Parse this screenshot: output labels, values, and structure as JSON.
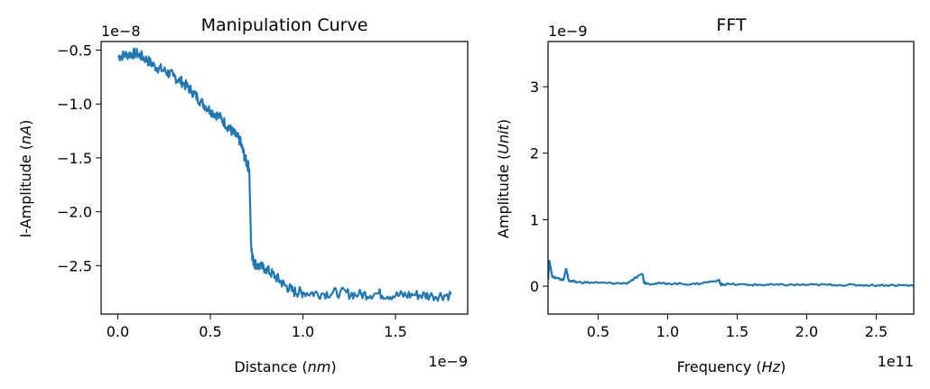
{
  "chart_data": [
    {
      "type": "line",
      "title": "Manipulation Curve",
      "xlabel": "Distance (nm)",
      "ylabel": "I-Amplitude (nA)",
      "x_offset_text": "1e−9",
      "y_offset_text": "1e−8",
      "xlim": [
        -9e-11,
        1.89e-09
      ],
      "ylim": [
        -2.95e-08,
        -4.2e-09
      ],
      "x_ticks": [
        0.0,
        5e-10,
        1e-09,
        1.5e-09
      ],
      "x_tick_labels": [
        "0.0",
        "0.5",
        "1.0",
        "1.5"
      ],
      "y_ticks": [
        -5e-09,
        -1e-08,
        -1.5e-08,
        -2e-08,
        -2.5e-08
      ],
      "y_tick_labels": [
        "−0.5",
        "−1.0",
        "−1.5",
        "−2.0",
        "−2.5"
      ],
      "grid": false,
      "series": [
        {
          "color": "#1f77b4",
          "x": [
            0.0,
            5e-11,
            1e-10,
            1.5e-10,
            2e-10,
            2.5e-10,
            3e-10,
            3.5e-10,
            4e-10,
            4.5e-10,
            5e-10,
            5.5e-10,
            6e-10,
            6.3e-10,
            6.6e-10,
            6.9e-10,
            7.1e-10,
            7.2e-10,
            7.3e-10,
            7.5e-10,
            8e-10,
            8.5e-10,
            9e-10,
            9.5e-10,
            1e-09,
            1.1e-09,
            1.2e-09,
            1.3e-09,
            1.4e-09,
            1.5e-09,
            1.6e-09,
            1.7e-09,
            1.8e-09
          ],
          "y": [
            -5.6e-09,
            -5.4e-09,
            -5.3e-09,
            -5.8e-09,
            -6.5e-09,
            -6.9e-09,
            -7.4e-09,
            -8e-09,
            -8.8e-09,
            -9.8e-09,
            -1.06e-08,
            -1.12e-08,
            -1.22e-08,
            -1.28e-08,
            -1.34e-08,
            -1.52e-08,
            -1.6e-08,
            -2.3e-08,
            -2.45e-08,
            -2.5e-08,
            -2.53e-08,
            -2.6e-08,
            -2.68e-08,
            -2.74e-08,
            -2.75e-08,
            -2.76e-08,
            -2.75e-08,
            -2.77e-08,
            -2.76e-08,
            -2.78e-08,
            -2.77e-08,
            -2.78e-08,
            -2.77e-08
          ]
        }
      ]
    },
    {
      "type": "line",
      "title": "FFT",
      "xlabel": "Frequency (Hz)",
      "ylabel": "Amplitude (Unit)",
      "x_offset_text": "1e11",
      "y_offset_text": "1e−9",
      "xlim": [
        14000000000.0,
        277000000000.0
      ],
      "ylim": [
        -4.2e-10,
        3.68e-09
      ],
      "x_ticks": [
        50000000000.0,
        100000000000.0,
        150000000000.0,
        200000000000.0,
        250000000000.0
      ],
      "x_tick_labels": [
        "0.5",
        "1.0",
        "1.5",
        "2.0",
        "2.5"
      ],
      "y_ticks": [
        0,
        1e-09,
        2e-09,
        3e-09
      ],
      "y_tick_labels": [
        "0",
        "1",
        "2",
        "3"
      ],
      "grid": false,
      "series": [
        {
          "color": "#1f77b4",
          "x": [
            14000000000.0,
            15000000000.0,
            17000000000.0,
            20000000000.0,
            25000000000.0,
            27000000000.0,
            29000000000.0,
            35000000000.0,
            50000000000.0,
            70000000000.0,
            82000000000.0,
            83000000000.0,
            85000000000.0,
            100000000000.0,
            120000000000.0,
            137000000000.0,
            138000000000.0,
            140000000000.0,
            160000000000.0,
            180000000000.0,
            200000000000.0,
            220000000000.0,
            240000000000.0,
            260000000000.0,
            277000000000.0
          ],
          "y": [
            1e-10,
            3.8e-10,
            1.5e-10,
            1.2e-10,
            9e-11,
            2.6e-10,
            8e-11,
            6e-11,
            5e-11,
            4e-11,
            1.8e-10,
            6e-11,
            4e-11,
            4e-11,
            3e-11,
            9e-11,
            3e-11,
            3e-11,
            2e-11,
            2e-11,
            2e-11,
            2e-11,
            1.5e-11,
            1.5e-11,
            1e-11
          ]
        }
      ]
    }
  ]
}
